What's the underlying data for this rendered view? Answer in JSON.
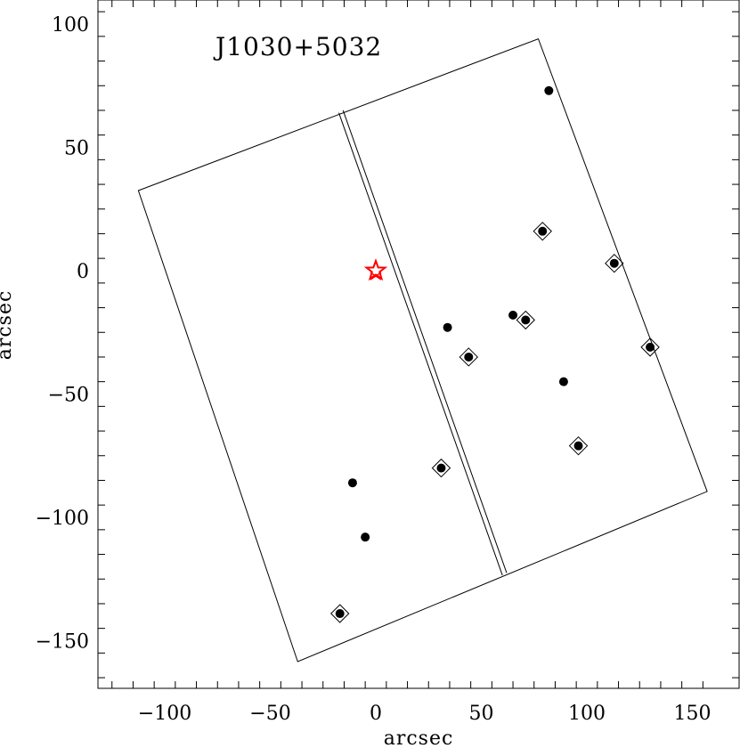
{
  "chart_data": {
    "type": "scatter",
    "title": "J1030+5032",
    "xlabel": "arcsec",
    "ylabel": "arcsec",
    "xlim": [
      -130,
      165
    ],
    "ylim": [
      -170,
      110
    ],
    "x_ticks": [
      -100,
      -50,
      0,
      50,
      100,
      150
    ],
    "y_ticks": [
      100,
      50,
      0,
      -50,
      -100,
      -150
    ],
    "x_tick_labels": [
      "−100",
      "−50",
      "0",
      "50",
      "100",
      "150"
    ],
    "y_tick_labels": [
      "100",
      "50",
      "0",
      "−50",
      "−100",
      "−150"
    ],
    "grid": false,
    "target_color": "#ff0000",
    "target_star": {
      "x": 0,
      "y": 0
    },
    "field_outline": [
      [
        -112.5,
        32.5
      ],
      [
        77,
        94
      ],
      [
        157,
        -89.5
      ],
      [
        -37,
        -158.5
      ]
    ],
    "chip_gap": [
      [
        [
          -17.5,
          64
        ],
        [
          60,
          -123.5
        ]
      ],
      [
        [
          -15.5,
          65
        ],
        [
          62,
          -122.5
        ]
      ]
    ],
    "points": [
      {
        "x": 82,
        "y": 73,
        "diamond": false
      },
      {
        "x": 79,
        "y": 16,
        "diamond": true
      },
      {
        "x": 113,
        "y": 3,
        "diamond": true
      },
      {
        "x": 65,
        "y": -18,
        "diamond": false
      },
      {
        "x": 71,
        "y": -20,
        "diamond": true
      },
      {
        "x": 34,
        "y": -23,
        "diamond": false
      },
      {
        "x": 130,
        "y": -31,
        "diamond": true
      },
      {
        "x": 44,
        "y": -35,
        "diamond": true
      },
      {
        "x": 89,
        "y": -45,
        "diamond": false
      },
      {
        "x": 96,
        "y": -71,
        "diamond": true
      },
      {
        "x": 31,
        "y": -80,
        "diamond": true
      },
      {
        "x": -11,
        "y": -86,
        "diamond": false
      },
      {
        "x": -5,
        "y": -108,
        "diamond": false
      },
      {
        "x": -17,
        "y": -139,
        "diamond": true
      }
    ]
  }
}
